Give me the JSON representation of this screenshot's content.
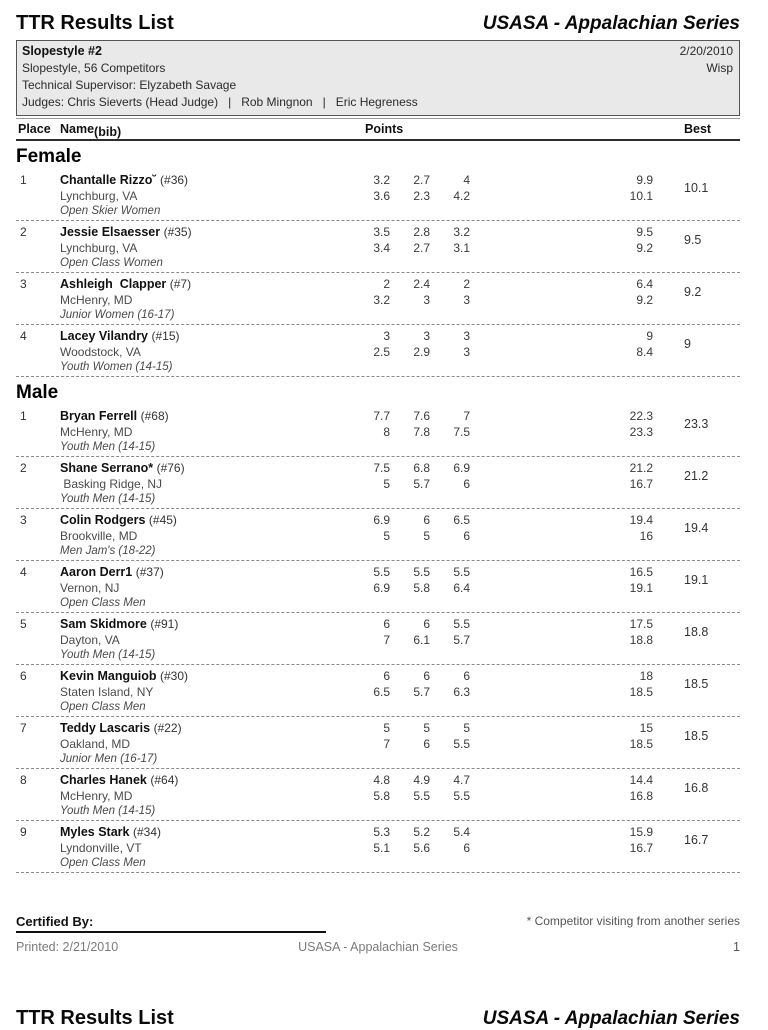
{
  "page": {
    "doc_title": "TTR Results List",
    "series_title": "USASA - Appalachian Series"
  },
  "event": {
    "name": "Slopestyle #2",
    "date": "2/20/2010",
    "subtitle": "Slopestyle, 56 Competitors",
    "location": "Wisp",
    "technical_supervisor": "Technical Supervisor: Elyzabeth Savage",
    "judges": "Judges: Chris Sieverts (Head Judge)   |   Rob Mingnon   |   Eric Hegreness"
  },
  "table": {
    "headers": {
      "place": "Place",
      "name": "Name",
      "bib": "(bib)",
      "points": "Points",
      "best": "Best"
    }
  },
  "sections": [
    {
      "label": "Female",
      "rows": [
        {
          "place": "1",
          "name": "Chantalle Rizzo˘",
          "bib": "(#36)",
          "city": "Lynchburg, VA",
          "division": "Open Skier Women",
          "run1": [
            "3.2",
            "2.7",
            "4"
          ],
          "run1_total": "9.9",
          "run2": [
            "3.6",
            "2.3",
            "4.2"
          ],
          "run2_total": "10.1",
          "best": "10.1"
        },
        {
          "place": "2",
          "name": "Jessie Elsaesser",
          "bib": "(#35)",
          "city": "Lynchburg, VA",
          "division": "Open Class Women",
          "run1": [
            "3.5",
            "2.8",
            "3.2"
          ],
          "run1_total": "9.5",
          "run2": [
            "3.4",
            "2.7",
            "3.1"
          ],
          "run2_total": "9.2",
          "best": "9.5"
        },
        {
          "place": "3",
          "name": "Ashleigh  Clapper",
          "bib": "(#7)",
          "city": "McHenry, MD",
          "division": "Junior Women (16-17)",
          "run1": [
            "2",
            "2.4",
            "2"
          ],
          "run1_total": "6.4",
          "run2": [
            "3.2",
            "3",
            "3"
          ],
          "run2_total": "9.2",
          "best": "9.2"
        },
        {
          "place": "4",
          "name": "Lacey Vilandry",
          "bib": "(#15)",
          "city": "Woodstock, VA",
          "division": "Youth Women (14-15)",
          "run1": [
            "3",
            "3",
            "3"
          ],
          "run1_total": "9",
          "run2": [
            "2.5",
            "2.9",
            "3"
          ],
          "run2_total": "8.4",
          "best": "9"
        }
      ]
    },
    {
      "label": "Male",
      "rows": [
        {
          "place": "1",
          "name": "Bryan Ferrell",
          "bib": "(#68)",
          "city": "McHenry, MD",
          "division": "Youth Men (14-15)",
          "run1": [
            "7.7",
            "7.6",
            "7"
          ],
          "run1_total": "22.3",
          "run2": [
            "8",
            "7.8",
            "7.5"
          ],
          "run2_total": "23.3",
          "best": "23.3"
        },
        {
          "place": "2",
          "name": "Shane Serrano*",
          "bib": "(#76)",
          "city": " Basking Ridge, NJ",
          "division": "Youth Men (14-15)",
          "run1": [
            "7.5",
            "6.8",
            "6.9"
          ],
          "run1_total": "21.2",
          "run2": [
            "5",
            "5.7",
            "6"
          ],
          "run2_total": "16.7",
          "best": "21.2"
        },
        {
          "place": "3",
          "name": "Colin Rodgers",
          "bib": "(#45)",
          "city": "Brookville, MD",
          "division": "Men Jam's (18-22)",
          "run1": [
            "6.9",
            "6",
            "6.5"
          ],
          "run1_total": "19.4",
          "run2": [
            "5",
            "5",
            "6"
          ],
          "run2_total": "16",
          "best": "19.4"
        },
        {
          "place": "4",
          "name": "Aaron Derr1",
          "bib": "(#37)",
          "city": "Vernon, NJ",
          "division": "Open Class Men",
          "run1": [
            "5.5",
            "5.5",
            "5.5"
          ],
          "run1_total": "16.5",
          "run2": [
            "6.9",
            "5.8",
            "6.4"
          ],
          "run2_total": "19.1",
          "best": "19.1"
        },
        {
          "place": "5",
          "name": "Sam Skidmore",
          "bib": "(#91)",
          "city": "Dayton, VA",
          "division": "Youth Men (14-15)",
          "run1": [
            "6",
            "6",
            "5.5"
          ],
          "run1_total": "17.5",
          "run2": [
            "7",
            "6.1",
            "5.7"
          ],
          "run2_total": "18.8",
          "best": "18.8"
        },
        {
          "place": "6",
          "name": "Kevin Manguiob",
          "bib": "(#30)",
          "city": "Staten Island, NY",
          "division": "Open Class Men",
          "run1": [
            "6",
            "6",
            "6"
          ],
          "run1_total": "18",
          "run2": [
            "6.5",
            "5.7",
            "6.3"
          ],
          "run2_total": "18.5",
          "best": "18.5"
        },
        {
          "place": "7",
          "name": "Teddy Lascaris",
          "bib": "(#22)",
          "city": "Oakland, MD",
          "division": "Junior Men (16-17)",
          "run1": [
            "5",
            "5",
            "5"
          ],
          "run1_total": "15",
          "run2": [
            "7",
            "6",
            "5.5"
          ],
          "run2_total": "18.5",
          "best": "18.5"
        },
        {
          "place": "8",
          "name": "Charles Hanek",
          "bib": "(#64)",
          "city": "McHenry, MD",
          "division": "Youth Men (14-15)",
          "run1": [
            "4.8",
            "4.9",
            "4.7"
          ],
          "run1_total": "14.4",
          "run2": [
            "5.8",
            "5.5",
            "5.5"
          ],
          "run2_total": "16.8",
          "best": "16.8"
        },
        {
          "place": "9",
          "name": "Myles Stark",
          "bib": "(#34)",
          "city": "Lyndonville, VT",
          "division": "Open Class Men",
          "run1": [
            "5.3",
            "5.2",
            "5.4"
          ],
          "run1_total": "15.9",
          "run2": [
            "5.1",
            "5.6",
            "6"
          ],
          "run2_total": "16.7",
          "best": "16.7"
        }
      ]
    }
  ],
  "footer": {
    "certified_by": "Certified By:",
    "visiting_note": "* Competitor visiting from another series",
    "printed": "Printed: 2/21/2010",
    "series": "USASA - Appalachian Series",
    "page_number": "1"
  },
  "next_page": {
    "doc_title": "TTR Results List",
    "series_title": "USASA - Appalachian Series"
  }
}
